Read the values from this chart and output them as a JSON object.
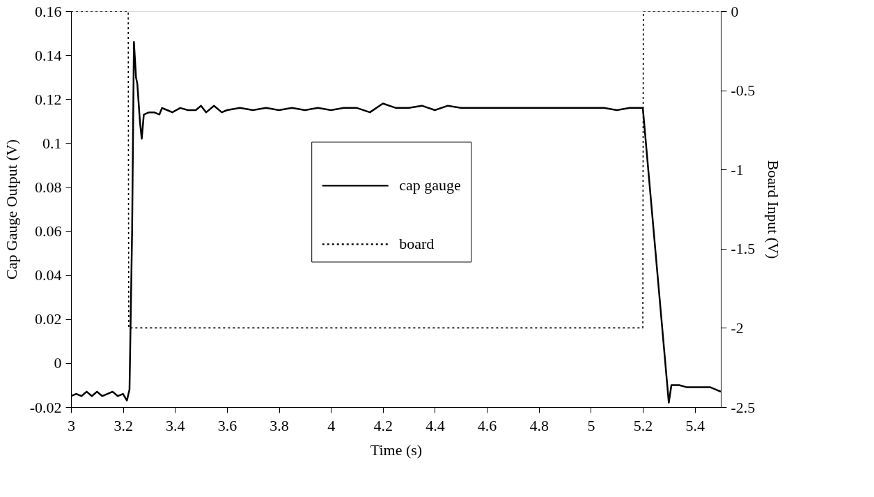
{
  "chart_data": {
    "type": "line",
    "xlabel": "Time (s)",
    "ylabel": "Cap Gauge Output (V)",
    "y2label": "Board Input (V)",
    "xlim": [
      3,
      5.5
    ],
    "xticks": [
      3,
      3.2,
      3.4,
      3.6,
      3.8,
      4,
      4.2,
      4.4,
      4.6,
      4.8,
      5,
      5.2,
      5.4
    ],
    "ylim": [
      -0.02,
      0.16
    ],
    "yticks": [
      -0.02,
      0,
      0.02,
      0.04,
      0.06,
      0.08,
      0.1,
      0.12,
      0.14,
      0.16
    ],
    "y2lim": [
      -2.5,
      0
    ],
    "y2ticks": [
      -2.5,
      -2,
      -1.5,
      -1,
      -0.5,
      0
    ],
    "legend": "center",
    "grid": false,
    "marker": "none",
    "series": [
      {
        "name": "cap gauge",
        "color": "#000000",
        "line_style": "solid",
        "x": [
          3.0,
          3.02,
          3.04,
          3.06,
          3.08,
          3.1,
          3.12,
          3.14,
          3.16,
          3.18,
          3.2,
          3.215,
          3.225,
          3.235,
          3.242,
          3.25,
          3.255,
          3.265,
          3.272,
          3.28,
          3.3,
          3.32,
          3.34,
          3.35,
          3.37,
          3.39,
          3.42,
          3.45,
          3.48,
          3.5,
          3.52,
          3.55,
          3.58,
          3.6,
          3.65,
          3.7,
          3.75,
          3.8,
          3.85,
          3.9,
          3.95,
          4.0,
          4.05,
          4.1,
          4.15,
          4.2,
          4.25,
          4.3,
          4.35,
          4.4,
          4.45,
          4.5,
          4.6,
          4.7,
          4.8,
          4.9,
          5.0,
          5.05,
          5.1,
          5.15,
          5.2,
          5.3,
          5.31,
          5.34,
          5.37,
          5.4,
          5.43,
          5.46,
          5.5
        ],
        "values": [
          -0.015,
          -0.014,
          -0.015,
          -0.013,
          -0.015,
          -0.013,
          -0.015,
          -0.014,
          -0.013,
          -0.015,
          -0.014,
          -0.017,
          -0.012,
          0.06,
          0.146,
          0.13,
          0.127,
          0.11,
          0.102,
          0.113,
          0.114,
          0.114,
          0.113,
          0.116,
          0.115,
          0.114,
          0.116,
          0.115,
          0.115,
          0.117,
          0.114,
          0.117,
          0.114,
          0.115,
          0.116,
          0.115,
          0.116,
          0.115,
          0.116,
          0.115,
          0.116,
          0.115,
          0.116,
          0.116,
          0.114,
          0.118,
          0.116,
          0.116,
          0.117,
          0.115,
          0.117,
          0.116,
          0.116,
          0.116,
          0.116,
          0.116,
          0.116,
          0.116,
          0.115,
          0.116,
          0.116,
          -0.018,
          -0.01,
          -0.01,
          -0.011,
          -0.011,
          -0.011,
          -0.011,
          -0.013
        ]
      },
      {
        "name": "board",
        "color": "#000000",
        "line_style": "dotted",
        "axis": "y2",
        "x": [
          3.0,
          3.22,
          3.222,
          5.2,
          5.202,
          5.5
        ],
        "values": [
          0,
          0,
          -2,
          -2,
          0,
          0
        ]
      }
    ]
  }
}
